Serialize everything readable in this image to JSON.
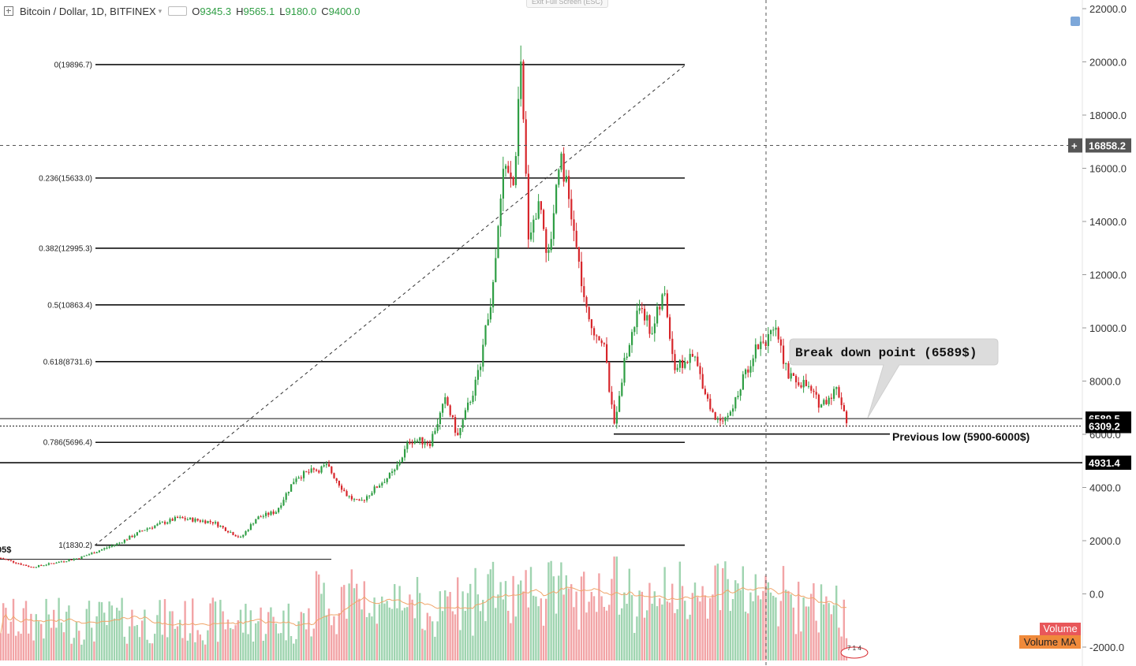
{
  "header": {
    "symbol": "Bitcoin / Dollar, 1D, BITFINEX",
    "open_label": "O",
    "open": "9345.3",
    "high_label": "H",
    "high": "9565.1",
    "low_label": "L",
    "low": "9180.0",
    "close_label": "C",
    "close": "9400.0",
    "exit_fullscreen": "Exit Full Screen (ESC)"
  },
  "colors": {
    "up": "#2f9e44",
    "down": "#d7262b",
    "vol_up": "#9fd4b0",
    "vol_down": "#f2a4a6",
    "volume_ma": "#f0a56a",
    "fib_line": "#111111",
    "trend": "#333333"
  },
  "legend": {
    "volume": "Volume",
    "volume_ma": "Volume MA"
  },
  "chart_data": {
    "type": "candlestick",
    "ylim": [
      -2500,
      22500
    ],
    "yticks": [
      22000,
      20000,
      18000,
      16000,
      14000,
      12000,
      10000,
      8000,
      6000,
      4000,
      2000,
      0,
      -2000
    ],
    "ytick_labels": [
      "22000.0",
      "20000.0",
      "18000.0",
      "16000.0",
      "14000.0",
      "12000.0",
      "10000.0",
      "8000.0",
      "6000.0",
      "4000.0",
      "2000.0",
      "0.0",
      "-2000.0"
    ],
    "price_path": [
      [
        0,
        1350
      ],
      [
        40,
        1000
      ],
      [
        100,
        1350
      ],
      [
        150,
        1900
      ],
      [
        185,
        2450
      ],
      [
        225,
        2850
      ],
      [
        270,
        2700
      ],
      [
        305,
        2100
      ],
      [
        325,
        2850
      ],
      [
        350,
        3100
      ],
      [
        375,
        4400
      ],
      [
        415,
        4800
      ],
      [
        440,
        3700
      ],
      [
        455,
        3400
      ],
      [
        480,
        4100
      ],
      [
        500,
        4600
      ],
      [
        520,
        5800
      ],
      [
        545,
        5700
      ],
      [
        565,
        7300
      ],
      [
        580,
        5900
      ],
      [
        605,
        8100
      ],
      [
        625,
        11500
      ],
      [
        640,
        16500
      ],
      [
        650,
        15000
      ],
      [
        660,
        19700
      ],
      [
        670,
        13500
      ],
      [
        685,
        14800
      ],
      [
        695,
        12500
      ],
      [
        710,
        16800
      ],
      [
        725,
        14000
      ],
      [
        745,
        10200
      ],
      [
        765,
        9500
      ],
      [
        778,
        6300
      ],
      [
        790,
        8500
      ],
      [
        812,
        11000
      ],
      [
        825,
        9800
      ],
      [
        842,
        11300
      ],
      [
        855,
        8500
      ],
      [
        880,
        8900
      ],
      [
        905,
        6600
      ],
      [
        925,
        6700
      ],
      [
        945,
        8300
      ],
      [
        960,
        9400
      ],
      [
        985,
        9800
      ],
      [
        1000,
        8100
      ],
      [
        1020,
        7900
      ],
      [
        1040,
        7100
      ],
      [
        1060,
        7700
      ],
      [
        1065,
        7400
      ],
      [
        1075,
        6300
      ]
    ],
    "volume_spikes": [
      [
        445,
        3000
      ],
      [
        580,
        2500
      ],
      [
        620,
        2700
      ],
      [
        660,
        2300
      ],
      [
        740,
        1800
      ],
      [
        780,
        3800
      ],
      [
        850,
        900
      ],
      [
        965,
        600
      ],
      [
        1070,
        1100
      ]
    ],
    "fib_levels": [
      {
        "label": "0(19896.7)",
        "value": 19896.7
      },
      {
        "label": "0.236(15633.0)",
        "value": 15633.0
      },
      {
        "label": "0.382(12995.3)",
        "value": 12995.3
      },
      {
        "label": "0.5(10863.4)",
        "value": 10863.4
      },
      {
        "label": "0.618(8731.6)",
        "value": 8731.6
      },
      {
        "label": "0.786(5696.4)",
        "value": 5696.4
      },
      {
        "label": "1(1830.2)",
        "value": 1830.2
      }
    ],
    "horizontal_lines": [
      6589.5,
      6309.2,
      4931.4,
      1300
    ],
    "crosshair_price": 16858.2,
    "price_tags": [
      {
        "label": "16858.2",
        "value": 16858.2,
        "color": "#555555"
      },
      {
        "label": "6589.5",
        "value": 6589.5,
        "color": "#000000"
      },
      {
        "label": "6309.2",
        "value": 6309.2,
        "color": "#000000"
      },
      {
        "label": "4931.4",
        "value": 4931.4,
        "color": "#000000"
      }
    ],
    "annotations": {
      "breakdown": "Break down point (6589$)",
      "previous_low": "Previous low (5900-6000$)",
      "left_edge_fragment": "05$"
    },
    "bottom_badge": "7 1 4"
  }
}
